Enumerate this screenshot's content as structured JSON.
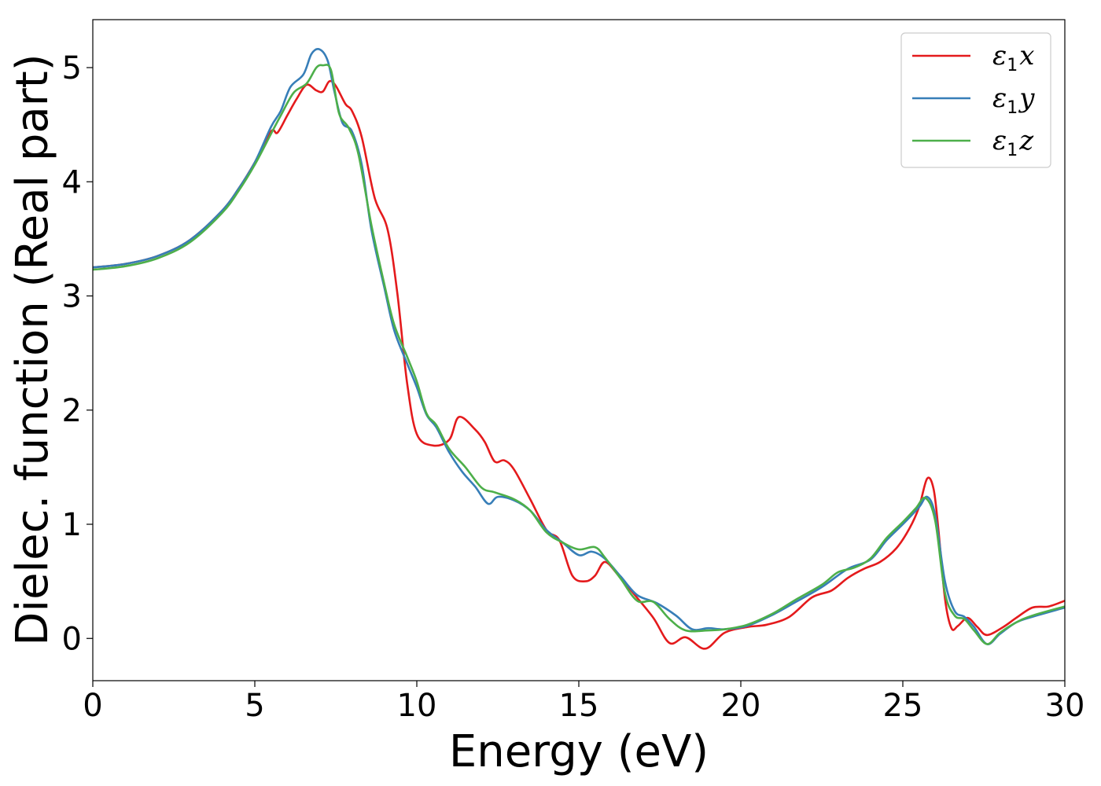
{
  "chart_data": {
    "type": "line",
    "xlabel": "Energy (eV)",
    "ylabel": "Dielec. function (Real part)",
    "xlim": [
      0,
      30
    ],
    "ylim": [
      -0.37,
      5.42
    ],
    "xticks": [
      0,
      5,
      10,
      15,
      20,
      25,
      30
    ],
    "yticks": [
      0,
      1,
      2,
      3,
      4,
      5
    ],
    "grid": false,
    "legend_position": "top-right",
    "series": [
      {
        "name": "ε1x",
        "legend_main": "ε",
        "legend_sub": "1",
        "legend_var": "x",
        "color": "#e41a1c",
        "points": [
          [
            0,
            3.25
          ],
          [
            1,
            3.28
          ],
          [
            2,
            3.35
          ],
          [
            3,
            3.49
          ],
          [
            4,
            3.75
          ],
          [
            4.5,
            3.94
          ],
          [
            5,
            4.17
          ],
          [
            5.5,
            4.44
          ],
          [
            5.7,
            4.43
          ],
          [
            6,
            4.58
          ],
          [
            6.3,
            4.73
          ],
          [
            6.6,
            4.85
          ],
          [
            6.9,
            4.8
          ],
          [
            7.1,
            4.79
          ],
          [
            7.3,
            4.88
          ],
          [
            7.5,
            4.84
          ],
          [
            7.8,
            4.68
          ],
          [
            8,
            4.62
          ],
          [
            8.3,
            4.39
          ],
          [
            8.7,
            3.86
          ],
          [
            9.1,
            3.58
          ],
          [
            9.4,
            3.02
          ],
          [
            9.7,
            2.24
          ],
          [
            10,
            1.79
          ],
          [
            10.5,
            1.69
          ],
          [
            11,
            1.74
          ],
          [
            11.3,
            1.94
          ],
          [
            11.8,
            1.83
          ],
          [
            12.1,
            1.72
          ],
          [
            12.4,
            1.55
          ],
          [
            12.7,
            1.56
          ],
          [
            13,
            1.48
          ],
          [
            13.5,
            1.22
          ],
          [
            14,
            0.95
          ],
          [
            14.4,
            0.86
          ],
          [
            14.8,
            0.55
          ],
          [
            15.2,
            0.5
          ],
          [
            15.5,
            0.55
          ],
          [
            15.8,
            0.67
          ],
          [
            16.2,
            0.56
          ],
          [
            16.7,
            0.39
          ],
          [
            17.3,
            0.18
          ],
          [
            17.8,
            -0.04
          ],
          [
            18.3,
            0.01
          ],
          [
            18.9,
            -0.09
          ],
          [
            19.5,
            0.05
          ],
          [
            20.2,
            0.1
          ],
          [
            20.8,
            0.12
          ],
          [
            21.5,
            0.19
          ],
          [
            22.2,
            0.36
          ],
          [
            22.8,
            0.42
          ],
          [
            23.3,
            0.53
          ],
          [
            23.8,
            0.61
          ],
          [
            24.3,
            0.67
          ],
          [
            24.8,
            0.79
          ],
          [
            25.2,
            0.96
          ],
          [
            25.5,
            1.15
          ],
          [
            25.75,
            1.4
          ],
          [
            25.95,
            1.31
          ],
          [
            26.1,
            0.95
          ],
          [
            26.3,
            0.35
          ],
          [
            26.5,
            0.09
          ],
          [
            26.7,
            0.11
          ],
          [
            27.0,
            0.18
          ],
          [
            27.3,
            0.1
          ],
          [
            27.6,
            0.03
          ],
          [
            28.1,
            0.1
          ],
          [
            28.5,
            0.18
          ],
          [
            29,
            0.27
          ],
          [
            29.5,
            0.28
          ],
          [
            30,
            0.33
          ]
        ]
      },
      {
        "name": "ε1y",
        "legend_main": "ε",
        "legend_sub": "1",
        "legend_var": "y",
        "color": "#377eb8",
        "points": [
          [
            0,
            3.25
          ],
          [
            1,
            3.28
          ],
          [
            2,
            3.35
          ],
          [
            3,
            3.49
          ],
          [
            4,
            3.75
          ],
          [
            4.5,
            3.94
          ],
          [
            5,
            4.17
          ],
          [
            5.5,
            4.48
          ],
          [
            5.8,
            4.62
          ],
          [
            6.1,
            4.83
          ],
          [
            6.5,
            4.94
          ],
          [
            6.75,
            5.12
          ],
          [
            7,
            5.16
          ],
          [
            7.25,
            5.06
          ],
          [
            7.45,
            4.8
          ],
          [
            7.7,
            4.52
          ],
          [
            8,
            4.44
          ],
          [
            8.3,
            4.15
          ],
          [
            8.6,
            3.58
          ],
          [
            9,
            3.07
          ],
          [
            9.3,
            2.7
          ],
          [
            9.7,
            2.41
          ],
          [
            10,
            2.2
          ],
          [
            10.3,
            1.96
          ],
          [
            10.6,
            1.85
          ],
          [
            11,
            1.63
          ],
          [
            11.4,
            1.46
          ],
          [
            11.8,
            1.33
          ],
          [
            12.2,
            1.18
          ],
          [
            12.5,
            1.24
          ],
          [
            13,
            1.21
          ],
          [
            13.5,
            1.12
          ],
          [
            14,
            0.95
          ],
          [
            14.5,
            0.84
          ],
          [
            15,
            0.73
          ],
          [
            15.4,
            0.76
          ],
          [
            15.8,
            0.7
          ],
          [
            16.3,
            0.54
          ],
          [
            16.8,
            0.38
          ],
          [
            17.4,
            0.31
          ],
          [
            18.0,
            0.2
          ],
          [
            18.5,
            0.08
          ],
          [
            19.0,
            0.09
          ],
          [
            19.5,
            0.08
          ],
          [
            20.2,
            0.11
          ],
          [
            21,
            0.21
          ],
          [
            21.7,
            0.32
          ],
          [
            22.5,
            0.45
          ],
          [
            23.3,
            0.61
          ],
          [
            24,
            0.69
          ],
          [
            24.5,
            0.86
          ],
          [
            25,
            1.0
          ],
          [
            25.5,
            1.15
          ],
          [
            25.75,
            1.24
          ],
          [
            26.0,
            1.08
          ],
          [
            26.3,
            0.5
          ],
          [
            26.6,
            0.24
          ],
          [
            26.9,
            0.19
          ],
          [
            27.2,
            0.1
          ],
          [
            27.6,
            -0.05
          ],
          [
            28,
            0.04
          ],
          [
            28.5,
            0.14
          ],
          [
            29,
            0.19
          ],
          [
            30,
            0.27
          ]
        ]
      },
      {
        "name": "ε1z",
        "legend_main": "ε",
        "legend_sub": "1",
        "legend_var": "z",
        "color": "#4daf4a",
        "points": [
          [
            0,
            3.23
          ],
          [
            1,
            3.26
          ],
          [
            2,
            3.33
          ],
          [
            3,
            3.47
          ],
          [
            4,
            3.73
          ],
          [
            4.5,
            3.92
          ],
          [
            5,
            4.15
          ],
          [
            5.5,
            4.42
          ],
          [
            5.8,
            4.58
          ],
          [
            6.2,
            4.78
          ],
          [
            6.6,
            4.86
          ],
          [
            6.9,
            5.0
          ],
          [
            7.1,
            5.02
          ],
          [
            7.35,
            4.98
          ],
          [
            7.6,
            4.6
          ],
          [
            7.9,
            4.47
          ],
          [
            8.2,
            4.24
          ],
          [
            8.6,
            3.62
          ],
          [
            9,
            3.1
          ],
          [
            9.3,
            2.75
          ],
          [
            9.7,
            2.47
          ],
          [
            10,
            2.25
          ],
          [
            10.3,
            1.97
          ],
          [
            10.6,
            1.87
          ],
          [
            11,
            1.66
          ],
          [
            11.5,
            1.5
          ],
          [
            12,
            1.32
          ],
          [
            12.4,
            1.28
          ],
          [
            13,
            1.22
          ],
          [
            13.5,
            1.12
          ],
          [
            14,
            0.93
          ],
          [
            14.5,
            0.84
          ],
          [
            15,
            0.78
          ],
          [
            15.5,
            0.8
          ],
          [
            15.8,
            0.71
          ],
          [
            16.3,
            0.52
          ],
          [
            16.8,
            0.33
          ],
          [
            17.3,
            0.32
          ],
          [
            17.8,
            0.17
          ],
          [
            18.3,
            0.07
          ],
          [
            19,
            0.07
          ],
          [
            19.5,
            0.08
          ],
          [
            20.2,
            0.12
          ],
          [
            21,
            0.22
          ],
          [
            21.7,
            0.34
          ],
          [
            22.5,
            0.47
          ],
          [
            23,
            0.58
          ],
          [
            23.5,
            0.62
          ],
          [
            24,
            0.7
          ],
          [
            24.5,
            0.88
          ],
          [
            25,
            1.02
          ],
          [
            25.4,
            1.14
          ],
          [
            25.7,
            1.23
          ],
          [
            26,
            1.03
          ],
          [
            26.3,
            0.4
          ],
          [
            26.6,
            0.2
          ],
          [
            26.9,
            0.17
          ],
          [
            27.2,
            0.07
          ],
          [
            27.6,
            -0.05
          ],
          [
            28,
            0.05
          ],
          [
            28.5,
            0.14
          ],
          [
            29,
            0.2
          ],
          [
            30,
            0.28
          ]
        ]
      }
    ]
  }
}
